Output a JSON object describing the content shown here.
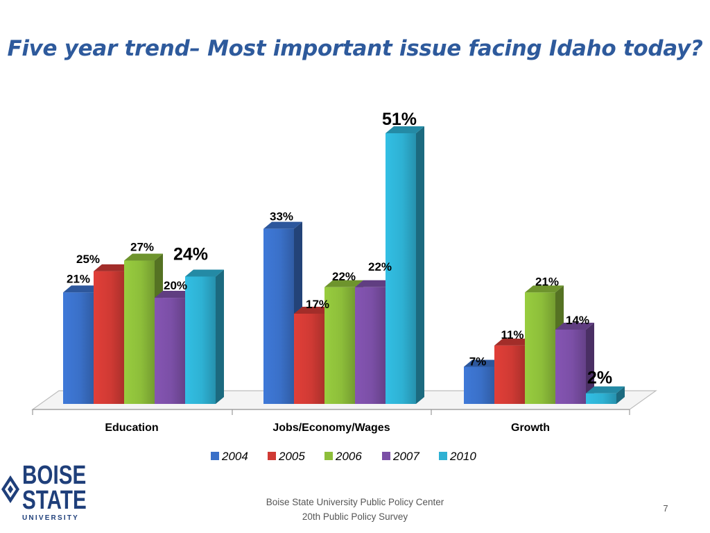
{
  "slide": {
    "footer_line1": "Boise State University  Public Policy Center",
    "footer_line2": "20th Public Policy Survey",
    "page_number": "7"
  },
  "logo": {
    "word1": "BOISE",
    "word2": "STATE",
    "word3": "UNIVERSITY"
  },
  "colors": {
    "2004": "#3A70C8",
    "2005": "#D03A34",
    "2006": "#8DBE3A",
    "2007": "#7B4FA6",
    "2010": "#2EB1D3"
  },
  "chart_data": {
    "type": "bar",
    "title": "Five year trend– Most important issue facing Idaho today?",
    "categories": [
      "Education",
      "Jobs/Economy/Wages",
      "Growth"
    ],
    "series": [
      {
        "name": "2004",
        "values": [
          21,
          33,
          7
        ]
      },
      {
        "name": "2005",
        "values": [
          25,
          17,
          11
        ]
      },
      {
        "name": "2006",
        "values": [
          27,
          22,
          21
        ]
      },
      {
        "name": "2007",
        "values": [
          20,
          22,
          14
        ]
      },
      {
        "name": "2010",
        "values": [
          24,
          51,
          2
        ]
      }
    ],
    "data_labels": [
      [
        "21%",
        "33%",
        "7%"
      ],
      [
        "25%",
        "17%",
        "11%"
      ],
      [
        "27%",
        "22%",
        "21%"
      ],
      [
        "20%",
        "22%",
        "14%"
      ],
      [
        "24%",
        "51%",
        "2%"
      ]
    ],
    "ylim": [
      0,
      51
    ],
    "xlabel": "",
    "ylabel": "",
    "legend_position": "bottom",
    "grid": false,
    "style": "3d-clustered-column"
  }
}
